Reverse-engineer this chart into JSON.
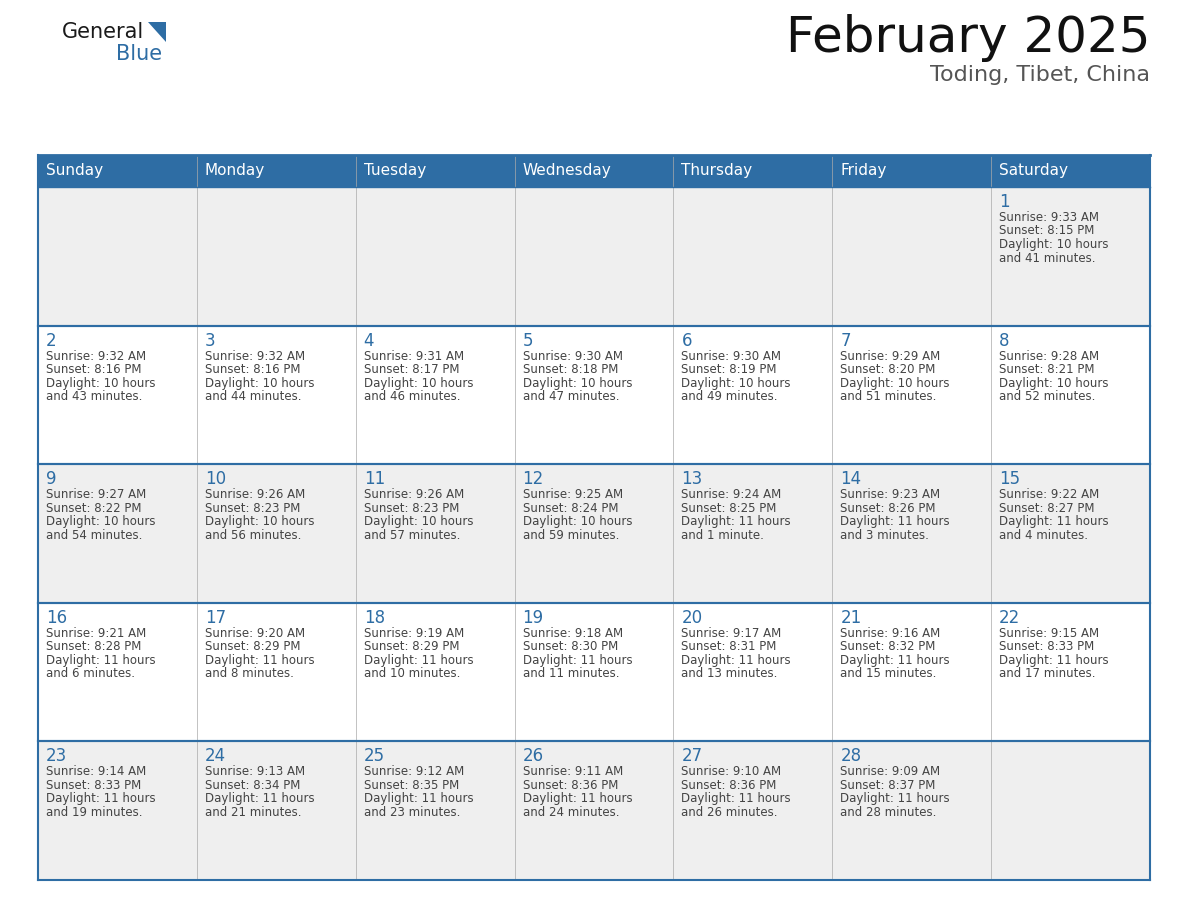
{
  "title": "February 2025",
  "subtitle": "Toding, Tibet, China",
  "days_of_week": [
    "Sunday",
    "Monday",
    "Tuesday",
    "Wednesday",
    "Thursday",
    "Friday",
    "Saturday"
  ],
  "header_bg": "#2E6DA4",
  "header_text": "#FFFFFF",
  "cell_bg_odd": "#EFEFEF",
  "cell_bg_even": "#FFFFFF",
  "day_num_color": "#2E6DA4",
  "text_color": "#444444",
  "line_color": "#2E6DA4",
  "border_color": "#2E6DA4",
  "calendar_data": [
    [
      null,
      null,
      null,
      null,
      null,
      null,
      {
        "day": 1,
        "sunrise": "9:33 AM",
        "sunset": "8:15 PM",
        "daylight": "10 hours and 41 minutes."
      }
    ],
    [
      {
        "day": 2,
        "sunrise": "9:32 AM",
        "sunset": "8:16 PM",
        "daylight": "10 hours and 43 minutes."
      },
      {
        "day": 3,
        "sunrise": "9:32 AM",
        "sunset": "8:16 PM",
        "daylight": "10 hours and 44 minutes."
      },
      {
        "day": 4,
        "sunrise": "9:31 AM",
        "sunset": "8:17 PM",
        "daylight": "10 hours and 46 minutes."
      },
      {
        "day": 5,
        "sunrise": "9:30 AM",
        "sunset": "8:18 PM",
        "daylight": "10 hours and 47 minutes."
      },
      {
        "day": 6,
        "sunrise": "9:30 AM",
        "sunset": "8:19 PM",
        "daylight": "10 hours and 49 minutes."
      },
      {
        "day": 7,
        "sunrise": "9:29 AM",
        "sunset": "8:20 PM",
        "daylight": "10 hours and 51 minutes."
      },
      {
        "day": 8,
        "sunrise": "9:28 AM",
        "sunset": "8:21 PM",
        "daylight": "10 hours and 52 minutes."
      }
    ],
    [
      {
        "day": 9,
        "sunrise": "9:27 AM",
        "sunset": "8:22 PM",
        "daylight": "10 hours and 54 minutes."
      },
      {
        "day": 10,
        "sunrise": "9:26 AM",
        "sunset": "8:23 PM",
        "daylight": "10 hours and 56 minutes."
      },
      {
        "day": 11,
        "sunrise": "9:26 AM",
        "sunset": "8:23 PM",
        "daylight": "10 hours and 57 minutes."
      },
      {
        "day": 12,
        "sunrise": "9:25 AM",
        "sunset": "8:24 PM",
        "daylight": "10 hours and 59 minutes."
      },
      {
        "day": 13,
        "sunrise": "9:24 AM",
        "sunset": "8:25 PM",
        "daylight": "11 hours and 1 minute."
      },
      {
        "day": 14,
        "sunrise": "9:23 AM",
        "sunset": "8:26 PM",
        "daylight": "11 hours and 3 minutes."
      },
      {
        "day": 15,
        "sunrise": "9:22 AM",
        "sunset": "8:27 PM",
        "daylight": "11 hours and 4 minutes."
      }
    ],
    [
      {
        "day": 16,
        "sunrise": "9:21 AM",
        "sunset": "8:28 PM",
        "daylight": "11 hours and 6 minutes."
      },
      {
        "day": 17,
        "sunrise": "9:20 AM",
        "sunset": "8:29 PM",
        "daylight": "11 hours and 8 minutes."
      },
      {
        "day": 18,
        "sunrise": "9:19 AM",
        "sunset": "8:29 PM",
        "daylight": "11 hours and 10 minutes."
      },
      {
        "day": 19,
        "sunrise": "9:18 AM",
        "sunset": "8:30 PM",
        "daylight": "11 hours and 11 minutes."
      },
      {
        "day": 20,
        "sunrise": "9:17 AM",
        "sunset": "8:31 PM",
        "daylight": "11 hours and 13 minutes."
      },
      {
        "day": 21,
        "sunrise": "9:16 AM",
        "sunset": "8:32 PM",
        "daylight": "11 hours and 15 minutes."
      },
      {
        "day": 22,
        "sunrise": "9:15 AM",
        "sunset": "8:33 PM",
        "daylight": "11 hours and 17 minutes."
      }
    ],
    [
      {
        "day": 23,
        "sunrise": "9:14 AM",
        "sunset": "8:33 PM",
        "daylight": "11 hours and 19 minutes."
      },
      {
        "day": 24,
        "sunrise": "9:13 AM",
        "sunset": "8:34 PM",
        "daylight": "11 hours and 21 minutes."
      },
      {
        "day": 25,
        "sunrise": "9:12 AM",
        "sunset": "8:35 PM",
        "daylight": "11 hours and 23 minutes."
      },
      {
        "day": 26,
        "sunrise": "9:11 AM",
        "sunset": "8:36 PM",
        "daylight": "11 hours and 24 minutes."
      },
      {
        "day": 27,
        "sunrise": "9:10 AM",
        "sunset": "8:36 PM",
        "daylight": "11 hours and 26 minutes."
      },
      {
        "day": 28,
        "sunrise": "9:09 AM",
        "sunset": "8:37 PM",
        "daylight": "11 hours and 28 minutes."
      },
      null
    ]
  ]
}
